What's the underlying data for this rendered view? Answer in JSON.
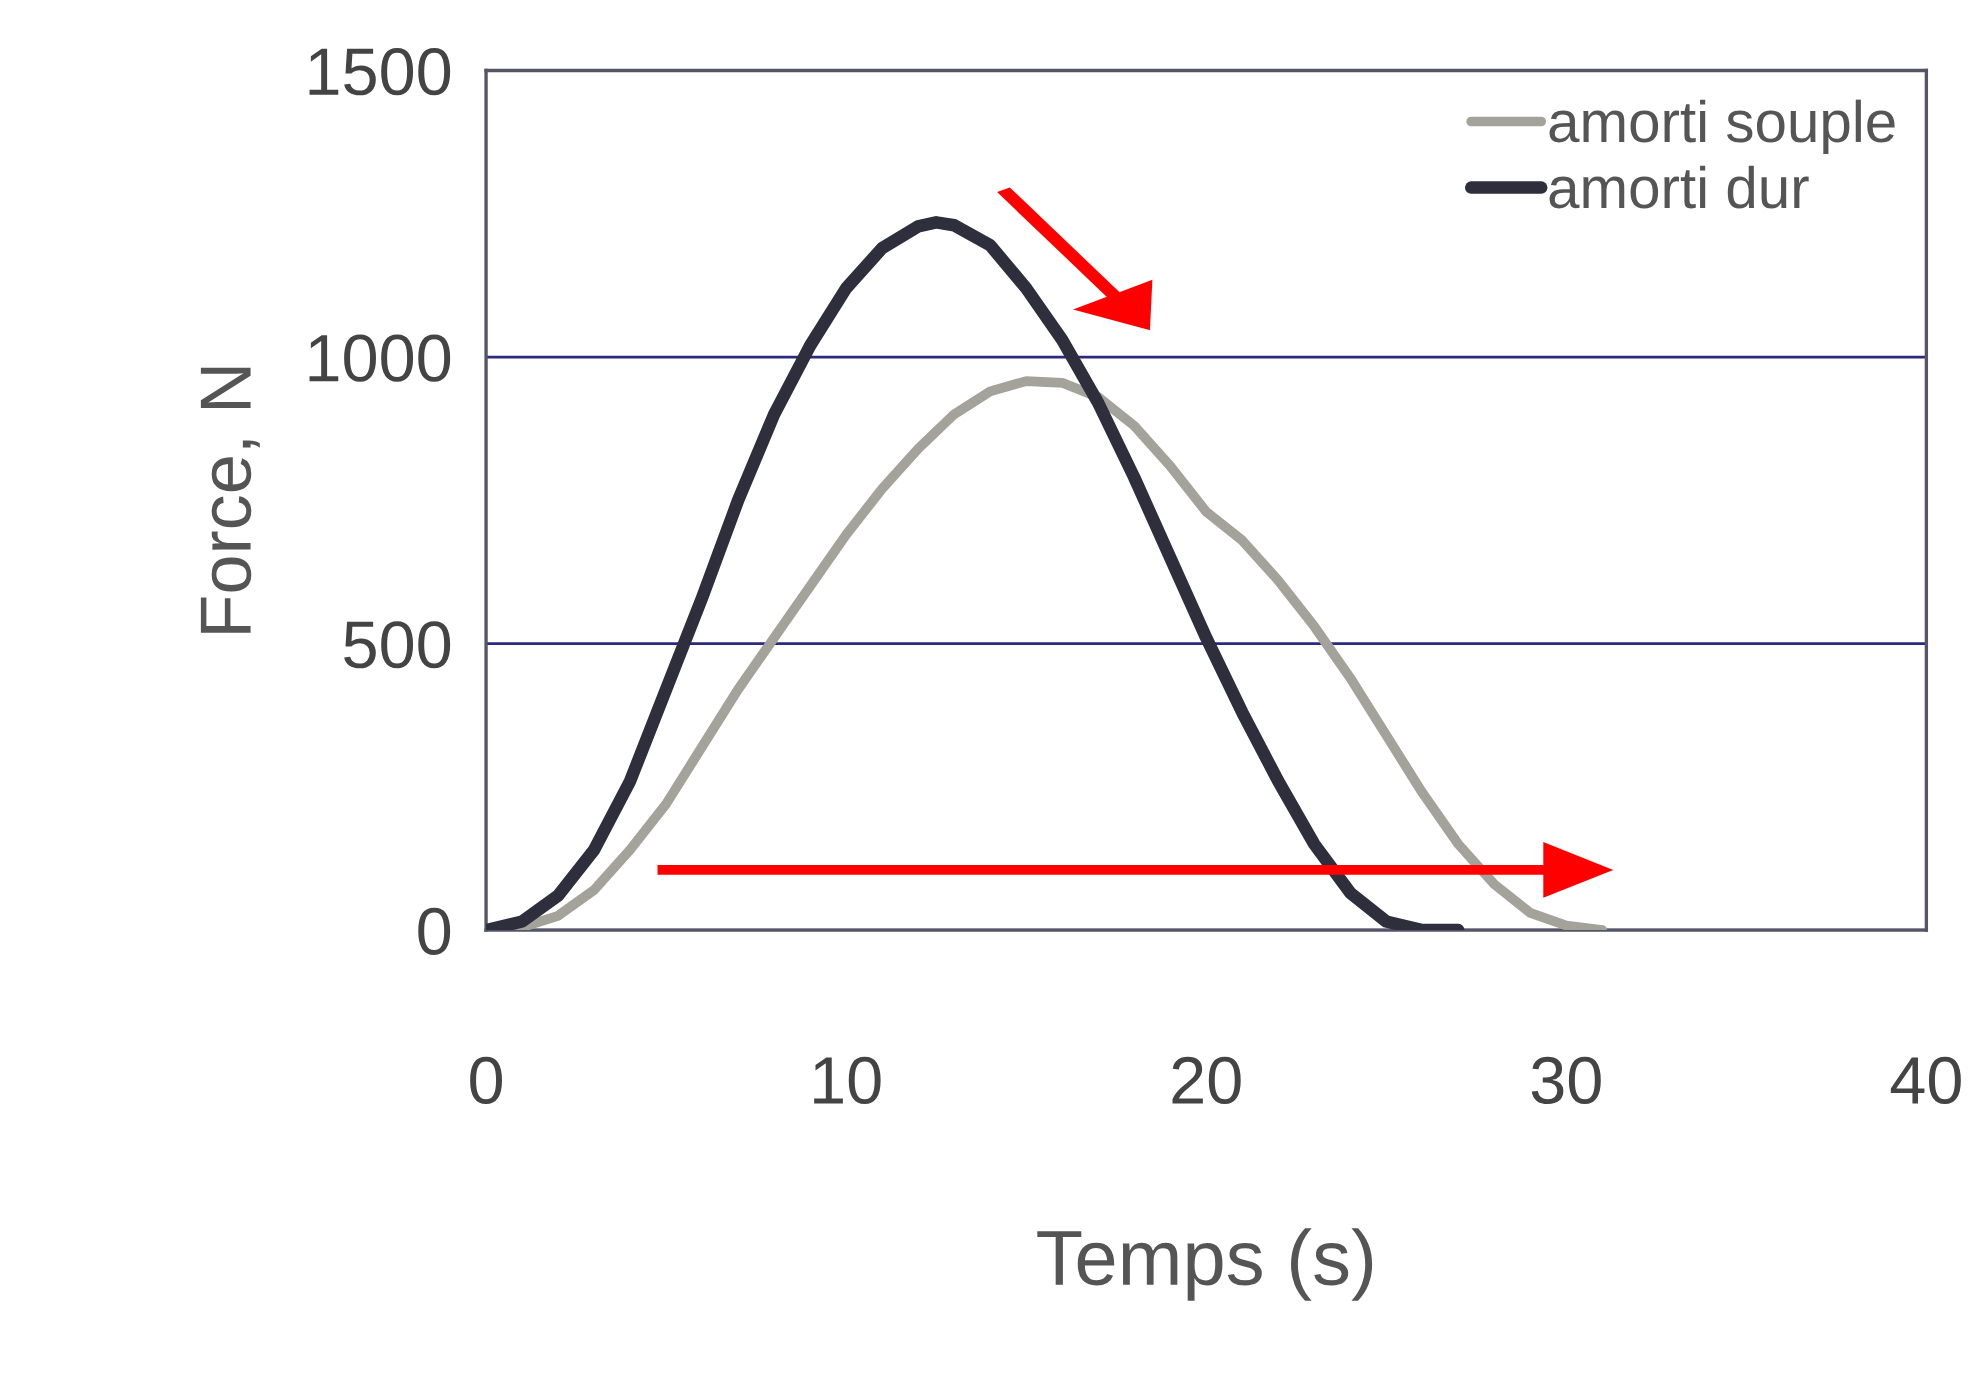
{
  "chart_data": {
    "type": "line",
    "xlabel": "Temps (s)",
    "ylabel": "Force, N",
    "xlim": [
      0,
      40
    ],
    "xticks": [
      0,
      10,
      20,
      30,
      40
    ],
    "ylim": [
      0,
      1500
    ],
    "yticks": [
      0,
      500,
      1000,
      1500
    ],
    "grid": "y",
    "legend": "top right",
    "marker": "none",
    "line_style": "solid",
    "series": [
      {
        "name": "amorti souple",
        "color": "#a3a39b",
        "x": [
          0,
          1,
          2,
          3,
          4,
          5,
          6,
          7,
          8,
          9,
          10,
          11,
          12,
          13,
          14,
          15,
          16,
          17,
          18,
          19,
          20,
          21,
          22,
          23,
          24,
          25,
          26,
          27,
          28,
          29,
          30,
          31
        ],
        "values": [
          0,
          5,
          25,
          70,
          140,
          220,
          320,
          420,
          510,
          600,
          690,
          770,
          840,
          900,
          940,
          958,
          955,
          930,
          880,
          810,
          730,
          680,
          610,
          530,
          440,
          340,
          240,
          150,
          80,
          30,
          8,
          0
        ]
      },
      {
        "name": "amorti dur",
        "color": "#2e2e3c",
        "x": [
          0,
          1,
          2,
          3,
          4,
          5,
          6,
          7,
          8,
          9,
          10,
          11,
          12,
          12.5,
          13,
          14,
          15,
          16,
          17,
          18,
          19,
          20,
          21,
          22,
          23,
          24,
          25,
          26,
          27
        ],
        "values": [
          0,
          15,
          60,
          140,
          260,
          420,
          580,
          750,
          900,
          1020,
          1120,
          1190,
          1228,
          1235,
          1230,
          1195,
          1120,
          1030,
          920,
          790,
          650,
          510,
          380,
          260,
          150,
          65,
          15,
          0,
          0
        ]
      }
    ]
  }
}
